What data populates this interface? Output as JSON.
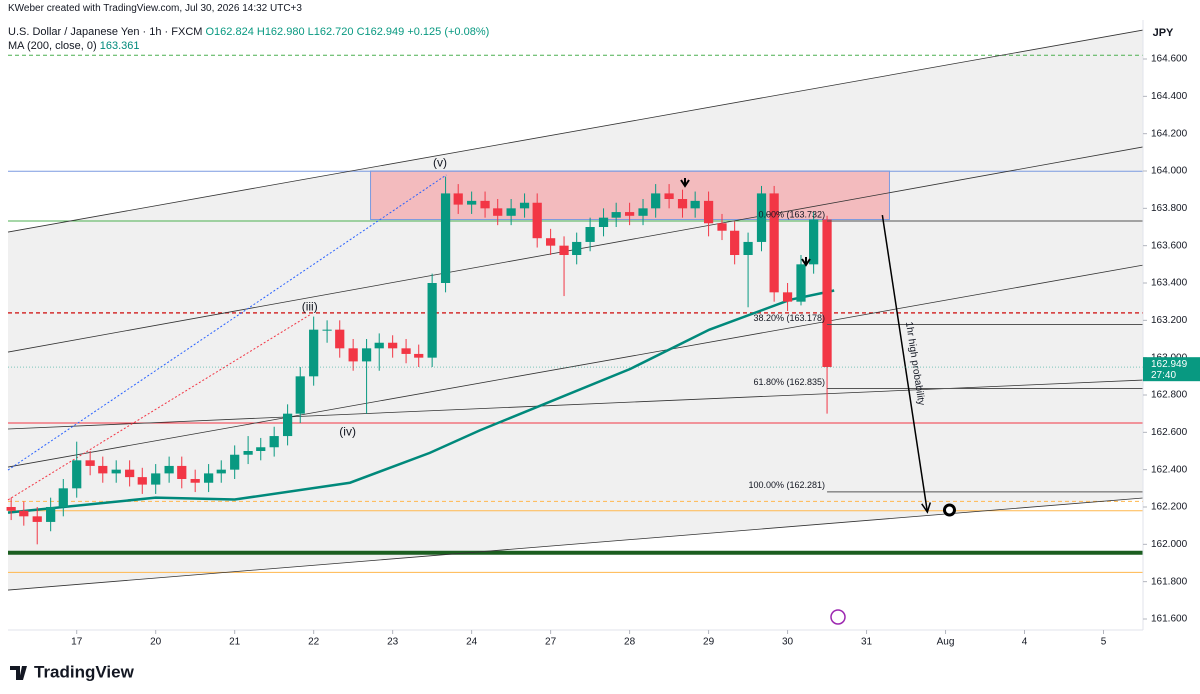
{
  "chart_data": {
    "type": "candlestick",
    "credit": "KWeber created with TradingView.com, Jul 30, 2026 14:32 UTC+3",
    "title": "U.S. Dollar / Japanese Yen · 1h · FXCM",
    "ohlc_text": "O162.824 H162.980 L162.720 C162.949 +0.125 (+0.08%)",
    "ma_text": "MA (200, close, 0)",
    "ma_value": "163.361",
    "currency": "JPY",
    "last_price": 162.949,
    "countdown": "27:40",
    "brand": "TradingView",
    "up_color": "#089981",
    "down_color": "#f23645",
    "ma_color": "#00897b",
    "xlim": [
      -0.87,
      13.5
    ],
    "ylim": [
      161.541,
      164.809
    ],
    "xticks": [
      {
        "value": 0,
        "label": "17"
      },
      {
        "value": 1,
        "label": "20"
      },
      {
        "value": 2,
        "label": "21"
      },
      {
        "value": 3,
        "label": "22"
      },
      {
        "value": 4,
        "label": "23"
      },
      {
        "value": 5,
        "label": "24"
      },
      {
        "value": 6,
        "label": "27"
      },
      {
        "value": 7,
        "label": "28"
      },
      {
        "value": 8,
        "label": "29"
      },
      {
        "value": 9,
        "label": "30"
      },
      {
        "value": 10,
        "label": "31"
      },
      {
        "value": 11,
        "label": "Aug"
      },
      {
        "value": 12,
        "label": "4"
      },
      {
        "value": 13,
        "label": "5"
      }
    ],
    "yticks": [
      {
        "value": 161.6,
        "label": "161.600"
      },
      {
        "value": 161.8,
        "label": "161.800"
      },
      {
        "value": 162.0,
        "label": "162.000"
      },
      {
        "value": 162.2,
        "label": "162.200"
      },
      {
        "value": 162.4,
        "label": "162.400"
      },
      {
        "value": 162.6,
        "label": "162.600"
      },
      {
        "value": 162.8,
        "label": "162.800"
      },
      {
        "value": 163.0,
        "label": "163.000"
      },
      {
        "value": 163.2,
        "label": "163.200"
      },
      {
        "value": 163.4,
        "label": "163.400"
      },
      {
        "value": 163.6,
        "label": "163.600"
      },
      {
        "value": 163.8,
        "label": "163.800"
      },
      {
        "value": 164.0,
        "label": "164.000"
      },
      {
        "value": 164.2,
        "label": "164.200"
      },
      {
        "value": 164.4,
        "label": "164.400"
      },
      {
        "value": 164.6,
        "label": "164.600"
      }
    ],
    "x": [
      -0.83,
      -0.67,
      -0.5,
      -0.33,
      -0.17,
      0,
      0.17,
      0.33,
      0.5,
      0.67,
      0.83,
      1,
      1.17,
      1.33,
      1.5,
      1.67,
      1.83,
      2,
      2.17,
      2.33,
      2.5,
      2.67,
      2.83,
      3,
      3.17,
      3.33,
      3.5,
      3.67,
      3.83,
      4,
      4.17,
      4.33,
      4.5,
      4.67,
      4.83,
      5,
      5.17,
      5.33,
      5.5,
      5.67,
      5.83,
      6,
      6.17,
      6.33,
      6.5,
      6.67,
      6.83,
      7,
      7.17,
      7.33,
      7.5,
      7.67,
      7.83,
      8,
      8.17,
      8.33,
      8.5,
      8.67,
      8.83,
      9,
      9.17,
      9.33,
      9.5
    ],
    "open": [
      162.2,
      162.18,
      162.15,
      162.12,
      162.2,
      162.3,
      162.45,
      162.42,
      162.38,
      162.4,
      162.36,
      162.32,
      162.38,
      162.42,
      162.35,
      162.33,
      162.38,
      162.4,
      162.48,
      162.5,
      162.52,
      162.58,
      162.7,
      162.9,
      163.15,
      163.15,
      163.05,
      162.98,
      163.05,
      163.08,
      163.05,
      163.02,
      163.0,
      163.4,
      163.88,
      163.82,
      163.84,
      163.8,
      163.76,
      163.8,
      163.83,
      163.64,
      163.6,
      163.55,
      163.62,
      163.7,
      163.75,
      163.78,
      163.76,
      163.8,
      163.88,
      163.85,
      163.8,
      163.84,
      163.72,
      163.68,
      163.55,
      163.62,
      163.88,
      163.35,
      163.3,
      163.5,
      163.74
    ],
    "high": [
      162.25,
      162.23,
      162.2,
      162.25,
      162.35,
      162.55,
      162.5,
      162.47,
      162.45,
      162.45,
      162.41,
      162.43,
      162.47,
      162.47,
      162.4,
      162.43,
      162.45,
      162.53,
      162.58,
      162.57,
      162.63,
      162.75,
      162.95,
      163.22,
      163.2,
      163.2,
      163.1,
      163.1,
      163.13,
      163.12,
      163.1,
      163.07,
      163.45,
      163.97,
      163.93,
      163.89,
      163.89,
      163.85,
      163.85,
      163.88,
      163.88,
      163.69,
      163.65,
      163.67,
      163.75,
      163.8,
      163.83,
      163.83,
      163.85,
      163.93,
      163.93,
      163.9,
      163.89,
      163.89,
      163.77,
      163.73,
      163.67,
      163.92,
      163.92,
      163.4,
      163.55,
      163.78,
      163.76
    ],
    "low": [
      162.13,
      162.1,
      162.0,
      162.07,
      162.15,
      162.25,
      162.37,
      162.33,
      162.33,
      162.31,
      162.27,
      162.27,
      162.33,
      162.3,
      162.28,
      162.28,
      162.33,
      162.35,
      162.43,
      162.45,
      162.47,
      162.53,
      162.65,
      162.85,
      163.08,
      163.0,
      162.93,
      162.7,
      162.93,
      163.0,
      162.97,
      162.95,
      162.95,
      163.35,
      163.77,
      163.77,
      163.75,
      163.71,
      163.71,
      163.75,
      163.59,
      163.55,
      163.33,
      163.5,
      163.57,
      163.65,
      163.7,
      163.71,
      163.71,
      163.75,
      163.8,
      163.75,
      163.75,
      163.65,
      163.63,
      163.5,
      163.27,
      163.57,
      163.3,
      163.25,
      163.28,
      163.45,
      162.7
    ],
    "close": [
      162.18,
      162.15,
      162.12,
      162.2,
      162.3,
      162.45,
      162.42,
      162.38,
      162.4,
      162.36,
      162.32,
      162.38,
      162.42,
      162.35,
      162.33,
      162.38,
      162.4,
      162.48,
      162.5,
      162.52,
      162.58,
      162.7,
      162.9,
      163.15,
      163.15,
      163.05,
      162.98,
      163.05,
      163.08,
      163.05,
      163.02,
      163.0,
      163.4,
      163.88,
      163.82,
      163.84,
      163.8,
      163.76,
      163.8,
      163.83,
      163.64,
      163.6,
      163.55,
      163.62,
      163.7,
      163.75,
      163.78,
      163.76,
      163.8,
      163.88,
      163.85,
      163.8,
      163.84,
      163.72,
      163.68,
      163.55,
      163.62,
      163.88,
      163.35,
      163.3,
      163.5,
      163.74,
      162.95
    ],
    "ma": {
      "x": [
        -0.87,
        1.0,
        2.0,
        3.46,
        4.47,
        5.1,
        7.01,
        8.01,
        9.03,
        9.59
      ],
      "values": [
        162.17,
        162.25,
        162.24,
        162.33,
        162.49,
        162.61,
        162.94,
        163.15,
        163.31,
        163.36
      ]
    },
    "channel": [
      {
        "x": [
          -0.87,
          13.5
        ],
        "values": [
          163.673,
          164.755
        ]
      },
      {
        "x": [
          -0.87,
          13.5
        ],
        "values": [
          163.03,
          164.129
        ]
      },
      {
        "x": [
          -0.87,
          13.5
        ],
        "values": [
          162.414,
          163.496
        ]
      },
      {
        "x": [
          -0.87,
          13.5
        ],
        "values": [
          162.618,
          162.88
        ]
      },
      {
        "x": [
          -0.87,
          13.5
        ],
        "values": [
          161.755,
          162.248
        ]
      }
    ],
    "dotted": [
      {
        "x": [
          -0.87,
          4.68
        ],
        "values": [
          162.398,
          163.979
        ],
        "color": "#2962ff"
      },
      {
        "x": [
          -0.87,
          2.95
        ],
        "values": [
          162.238,
          163.229
        ],
        "color": "#f23645"
      }
    ],
    "levels": [
      {
        "price": 164.62,
        "color": "#4caf50",
        "width": 1,
        "dashed": true
      },
      {
        "price": 163.999,
        "color": "#7b9ae0",
        "width": 1,
        "dashed": false
      },
      {
        "price": 163.732,
        "color": "#4caf50",
        "width": 1,
        "dashed": false
      },
      {
        "price": 163.24,
        "color": "#d32f2f",
        "width": 1.5,
        "dashed": true
      },
      {
        "price": 162.65,
        "color": "#f23645",
        "width": 1,
        "dashed": false
      },
      {
        "price": 162.23,
        "color": "#ffb74d",
        "width": 1,
        "dashed": true
      },
      {
        "price": 162.18,
        "color": "#ffb74d",
        "width": 1,
        "dashed": false
      },
      {
        "price": 161.955,
        "color": "#1b5e20",
        "width": 4,
        "dashed": false
      },
      {
        "price": 161.85,
        "color": "#ffb74d",
        "width": 1,
        "dashed": false
      }
    ],
    "zone": {
      "x": [
        3.72,
        10.29
      ],
      "values": [
        164.0,
        163.74
      ],
      "color": "#f4a4a8"
    },
    "fib": [
      {
        "label": "0.00% (163.732)",
        "price": 163.732
      },
      {
        "label": "38.20% (163.178)",
        "price": 163.178
      },
      {
        "label": "61.80% (162.835)",
        "price": 162.835
      },
      {
        "label": "100.00% (162.281)",
        "price": 162.281
      }
    ],
    "fib_x": [
      9.5,
      13.5
    ],
    "arrow": {
      "x": [
        10.2,
        10.77
      ],
      "values": [
        163.764,
        162.173
      ],
      "label": "1hr high probability"
    },
    "target": {
      "x": 11.05,
      "value": 162.184
    },
    "annotations": [
      {
        "text": "(v)",
        "x": 4.6,
        "price": 164.04
      },
      {
        "text": "(iii)",
        "x": 2.95,
        "price": 163.27
      },
      {
        "text": "(iv)",
        "x": 3.43,
        "price": 162.6
      }
    ]
  }
}
